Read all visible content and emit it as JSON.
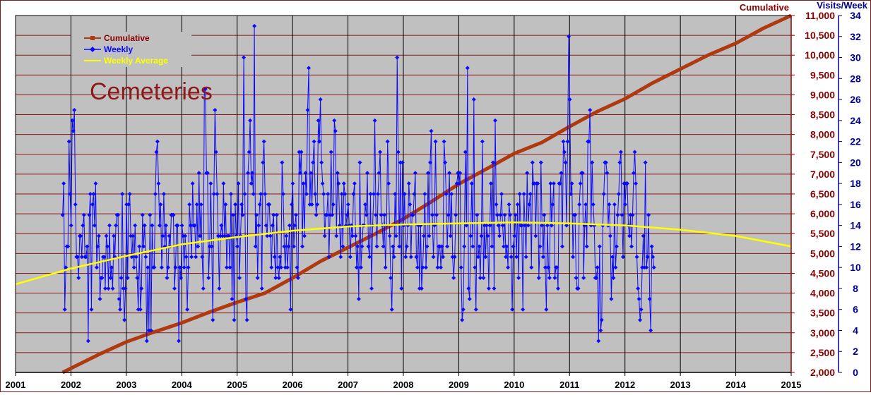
{
  "chart_data": {
    "type": "line",
    "title": "Cemeteries",
    "colors": {
      "plot_bg": "#c0c0c0",
      "grid_h": "#8b1a1a",
      "grid_v": "#000000",
      "cumulative": "#b03a10",
      "weekly": "#0a0aff",
      "average": "#ffff00",
      "left_axis": "#8b0000",
      "right_axis": "#00008b",
      "title": "#8b1a1a"
    },
    "x_axis": {
      "ticks": [
        "2001",
        "2002",
        "2003",
        "2004",
        "2005",
        "2006",
        "2007",
        "2008",
        "2009",
        "2010",
        "2011",
        "2012",
        "2013",
        "2014",
        "2015"
      ],
      "range": [
        2001,
        2015
      ]
    },
    "y_left": {
      "label": "Cumulative",
      "range": [
        2000,
        11000
      ],
      "ticks": [
        "2,000",
        "2,500",
        "3,000",
        "3,500",
        "4,000",
        "4,500",
        "5,000",
        "5,500",
        "6,000",
        "6,500",
        "7,000",
        "7,500",
        "8,000",
        "8,500",
        "9,000",
        "9,500",
        "10,000",
        "10,500",
        "11,000"
      ]
    },
    "y_right": {
      "label": "Visits/Week",
      "range": [
        0,
        34
      ],
      "ticks": [
        "0",
        "2",
        "4",
        "6",
        "8",
        "10",
        "12",
        "14",
        "16",
        "18",
        "20",
        "22",
        "24",
        "26",
        "28",
        "30",
        "32",
        "34"
      ]
    },
    "legend": {
      "placement": "top-left",
      "entries": [
        "Cumulative",
        "Weekly",
        "Weekly Average"
      ]
    },
    "series": [
      {
        "name": "Cumulative",
        "axis": "left",
        "x": [
          2001.85,
          2002.5,
          2003.0,
          2003.5,
          2004.0,
          2004.5,
          2005.0,
          2005.5,
          2006.0,
          2006.5,
          2007.0,
          2007.5,
          2008.0,
          2008.5,
          2009.0,
          2009.5,
          2010.0,
          2010.5,
          2011.0,
          2011.5,
          2012.0,
          2012.5,
          2013.0,
          2013.5,
          2014.0,
          2014.5,
          2015.0
        ],
        "y": [
          2000,
          2450,
          2770,
          3020,
          3250,
          3520,
          3770,
          4000,
          4380,
          4800,
          5150,
          5500,
          5870,
          6300,
          6750,
          7130,
          7520,
          7800,
          8200,
          8580,
          8900,
          9300,
          9650,
          10000,
          10300,
          10680,
          11000
        ]
      },
      {
        "name": "Weekly Average",
        "axis": "right",
        "x": [
          2001,
          2002,
          2003,
          2004,
          2005,
          2006,
          2007,
          2008,
          2009,
          2010,
          2011,
          2012,
          2013,
          2014,
          2015
        ],
        "y": [
          8.4,
          9.9,
          11.1,
          12.2,
          12.9,
          13.5,
          13.9,
          14.1,
          14.2,
          14.3,
          14.2,
          14.0,
          13.6,
          13.0,
          12.0
        ]
      },
      {
        "name": "Weekly",
        "axis": "right",
        "start": 2001.85,
        "step": 0.01923,
        "y": [
          15,
          18,
          6,
          10,
          12,
          12,
          22,
          17,
          14,
          24,
          23,
          25,
          16,
          11,
          11,
          9,
          13,
          13,
          11,
          14,
          15,
          11,
          11,
          12,
          3,
          15,
          17,
          6,
          16,
          17,
          14,
          18,
          10,
          12,
          13,
          7,
          9,
          9,
          11,
          11,
          8,
          13,
          12,
          8,
          14,
          9,
          10,
          8,
          13,
          11,
          14,
          15,
          15,
          7,
          6,
          9,
          17,
          8,
          5,
          8,
          16,
          9,
          16,
          17,
          13,
          11,
          13,
          10,
          14,
          11,
          9,
          6,
          12,
          6,
          8,
          15,
          12,
          14,
          11,
          3,
          10,
          4,
          15,
          4,
          14,
          10,
          10,
          17,
          21,
          22,
          18,
          14,
          16,
          10,
          13,
          17,
          12,
          14,
          9,
          10,
          13,
          12,
          15,
          15,
          15,
          8,
          10,
          14,
          14,
          3,
          10,
          9,
          14,
          13,
          10,
          13,
          11,
          6,
          10,
          16,
          14,
          11,
          18,
          14,
          14,
          11,
          16,
          12,
          19,
          13,
          16,
          11,
          8,
          27,
          27,
          19,
          19,
          9,
          12,
          18,
          12,
          5,
          17,
          25,
          21,
          17,
          13,
          8,
          13,
          14,
          13,
          18,
          13,
          16,
          10,
          13,
          13,
          10,
          17,
          7,
          15,
          5,
          16,
          13,
          12,
          18,
          9,
          13,
          16,
          15,
          30,
          17,
          7,
          5,
          19,
          21,
          24,
          18,
          19,
          17,
          33,
          12,
          15,
          9,
          14,
          16,
          17,
          8,
          20,
          22,
          17,
          14,
          13,
          16,
          16,
          13,
          10,
          14,
          15,
          11,
          9,
          15,
          10,
          9,
          11,
          10,
          20,
          17,
          12,
          10,
          13,
          10,
          12,
          14,
          6,
          16,
          18,
          12,
          14,
          15,
          10,
          9,
          21,
          19,
          21,
          12,
          18,
          13,
          19,
          17,
          25,
          29,
          16,
          19,
          16,
          20,
          22,
          17,
          15,
          16,
          24,
          22,
          26,
          20,
          18,
          17,
          13,
          15,
          15,
          17,
          11,
          15,
          21,
          15,
          16,
          24,
          23,
          13,
          19,
          18,
          14,
          11,
          17,
          12,
          18,
          17,
          14,
          15,
          16,
          14,
          11,
          14,
          13,
          17,
          18,
          13,
          10,
          12,
          7,
          20,
          10,
          12,
          14,
          14,
          16,
          15,
          19,
          12,
          11,
          17,
          8,
          14,
          17,
          24,
          15,
          12,
          17,
          19,
          21,
          15,
          14,
          12,
          15,
          10,
          14,
          22,
          18,
          13,
          9,
          6,
          12,
          11,
          17,
          13,
          30,
          21,
          12,
          20,
          8,
          20,
          14,
          17,
          11,
          12,
          14,
          18,
          16,
          11,
          15,
          15,
          17,
          19,
          11,
          10,
          14,
          8,
          14,
          8,
          10,
          13,
          17,
          10,
          12,
          19,
          13,
          20,
          23,
          15,
          11,
          14,
          22,
          15,
          10,
          12,
          12,
          10,
          12,
          11,
          22,
          20,
          17,
          12,
          15,
          19,
          13,
          17,
          11,
          9,
          11,
          15,
          18,
          19,
          18,
          19,
          10,
          5,
          6,
          12,
          21,
          14,
          29,
          8,
          7,
          13,
          18,
          12,
          26,
          10,
          6,
          15,
          11,
          12,
          9,
          13,
          22,
          9,
          14,
          11,
          14,
          13,
          8,
          14,
          18,
          12,
          20,
          8,
          24,
          16,
          15,
          14,
          13,
          15,
          17,
          14,
          12,
          15,
          11,
          12,
          10,
          16,
          15,
          11,
          6,
          12,
          13,
          15,
          11,
          16,
          9,
          17,
          14,
          14,
          6,
          17,
          14,
          11,
          19,
          14,
          16,
          17,
          10,
          20,
          18,
          18,
          13,
          18,
          18,
          9,
          12,
          20,
          14,
          11,
          15,
          10,
          6,
          14,
          10,
          9,
          18,
          14,
          16,
          18,
          9,
          10,
          10,
          8,
          18,
          18,
          19,
          12,
          22,
          21,
          20,
          14,
          22,
          32,
          26,
          17,
          18,
          11,
          15,
          15,
          9,
          8,
          8,
          16,
          18,
          19,
          19,
          9,
          14,
          16,
          12,
          22,
          22,
          25,
          14,
          20,
          16,
          14,
          9,
          9,
          10,
          3,
          12,
          4,
          5,
          14,
          17,
          20,
          20,
          19,
          14,
          16,
          13,
          7,
          11,
          9,
          16,
          10,
          12,
          15,
          17,
          20,
          21,
          15,
          11,
          18,
          16,
          18,
          18,
          14,
          13,
          15,
          12,
          15,
          19,
          21,
          18,
          11,
          8,
          7,
          5,
          6,
          10,
          13,
          10,
          20,
          10,
          11,
          15,
          7,
          4,
          12,
          11,
          10
        ]
      }
    ]
  }
}
